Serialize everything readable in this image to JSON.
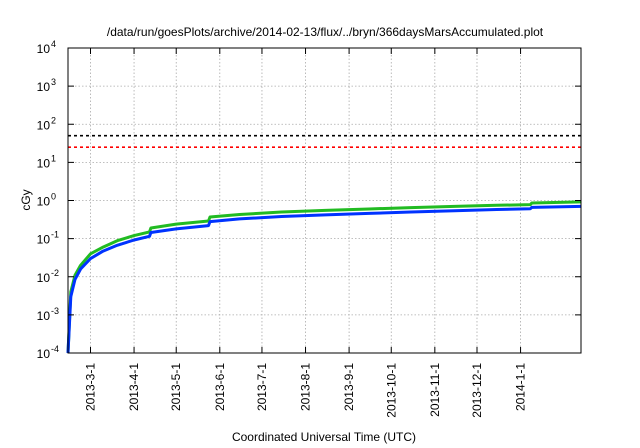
{
  "chart_data": {
    "type": "line",
    "title": "/data/run/goesPlots/archive/2014-02-13/flux/../bryn/366daysMarsAccumulated.plot",
    "xlabel": "Coordinated Universal Time (UTC)",
    "ylabel": "cGy",
    "y_scale": "log",
    "ylim": [
      0.0001,
      10000
    ],
    "y_ticks": [
      {
        "value": 0.0001,
        "base": "10",
        "exp": "-4"
      },
      {
        "value": 0.001,
        "base": "10",
        "exp": "-3"
      },
      {
        "value": 0.01,
        "base": "10",
        "exp": "-2"
      },
      {
        "value": 0.1,
        "base": "10",
        "exp": "-1"
      },
      {
        "value": 1,
        "base": "10",
        "exp": "0"
      },
      {
        "value": 10,
        "base": "10",
        "exp": "1"
      },
      {
        "value": 100,
        "base": "10",
        "exp": "2"
      },
      {
        "value": 1000,
        "base": "10",
        "exp": "3"
      },
      {
        "value": 10000,
        "base": "10",
        "exp": "4"
      }
    ],
    "xlim": [
      "2013-02-13",
      "2014-02-13"
    ],
    "x_ticks": [
      "2013-3-1",
      "2013-4-1",
      "2013-5-1",
      "2013-6-1",
      "2013-7-1",
      "2013-8-1",
      "2013-9-1",
      "2013-10-1",
      "2013-11-1",
      "2013-12-1",
      "2014-1-1"
    ],
    "x_tick_dates": [
      "2013-03-01",
      "2013-04-01",
      "2013-05-01",
      "2013-06-01",
      "2013-07-01",
      "2013-08-01",
      "2013-09-01",
      "2013-10-01",
      "2013-11-01",
      "2013-12-01",
      "2014-01-01"
    ],
    "grid": true,
    "thresholds": [
      {
        "value": 50,
        "color": "#000000",
        "style": "dashed"
      },
      {
        "value": 25,
        "color": "#ff0000",
        "style": "dashed"
      }
    ],
    "series": [
      {
        "color": "#22bb22",
        "x": [
          "2013-02-13",
          "2013-02-15",
          "2013-02-18",
          "2013-02-22",
          "2013-03-01",
          "2013-03-10",
          "2013-03-20",
          "2013-04-01",
          "2013-04-12",
          "2013-04-13",
          "2013-05-01",
          "2013-05-24",
          "2013-05-25",
          "2013-06-15",
          "2013-07-15",
          "2013-08-15",
          "2013-09-15",
          "2013-10-15",
          "2013-11-15",
          "2013-12-15",
          "2014-01-08",
          "2014-01-09",
          "2014-02-13"
        ],
        "y": [
          0.0001,
          0.004,
          0.011,
          0.02,
          0.04,
          0.06,
          0.088,
          0.12,
          0.15,
          0.19,
          0.24,
          0.29,
          0.37,
          0.43,
          0.5,
          0.55,
          0.6,
          0.65,
          0.7,
          0.75,
          0.78,
          0.86,
          0.92
        ]
      },
      {
        "color": "#0033ff",
        "x": [
          "2013-02-13",
          "2013-02-15",
          "2013-02-18",
          "2013-02-22",
          "2013-03-01",
          "2013-03-10",
          "2013-03-20",
          "2013-04-01",
          "2013-04-12",
          "2013-04-13",
          "2013-05-01",
          "2013-05-24",
          "2013-05-25",
          "2013-06-15",
          "2013-07-15",
          "2013-08-15",
          "2013-09-15",
          "2013-10-15",
          "2013-11-15",
          "2013-12-15",
          "2014-01-08",
          "2014-01-09",
          "2014-02-13"
        ],
        "y": [
          0.0001,
          0.003,
          0.0085,
          0.016,
          0.03,
          0.047,
          0.067,
          0.092,
          0.115,
          0.145,
          0.18,
          0.22,
          0.28,
          0.33,
          0.38,
          0.42,
          0.46,
          0.5,
          0.54,
          0.58,
          0.61,
          0.66,
          0.7
        ]
      }
    ]
  }
}
